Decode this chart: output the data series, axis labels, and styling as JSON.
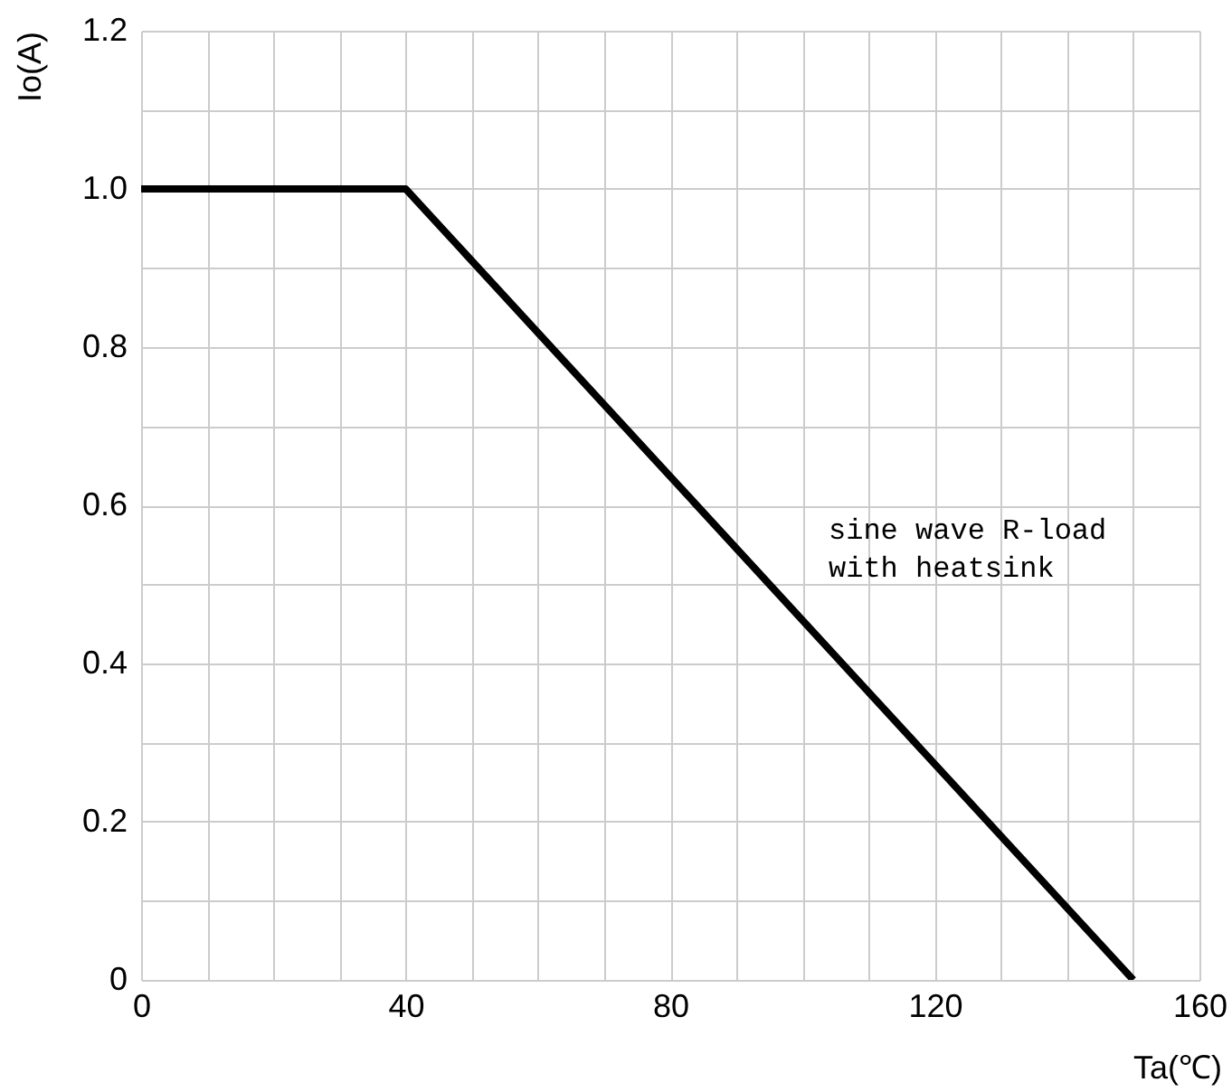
{
  "chart_data": {
    "type": "line",
    "xlabel": "Ta(℃)",
    "ylabel": "Io(A)",
    "x": [
      0,
      40,
      150
    ],
    "series": [
      {
        "color": "#000000",
        "values": [
          1.0,
          1.0,
          0
        ]
      }
    ],
    "xlim": [
      0,
      160
    ],
    "xticks": [
      0,
      {
        "value": 10,
        "label": null
      },
      {
        "value": 20,
        "label": null
      },
      {
        "value": 30,
        "label": null
      },
      40,
      {
        "value": 50,
        "label": null
      },
      {
        "value": 60,
        "label": null
      },
      {
        "value": 70,
        "label": null
      },
      80,
      {
        "value": 90,
        "label": null
      },
      {
        "value": 100,
        "label": null
      },
      {
        "value": 110,
        "label": null
      },
      120,
      {
        "value": 130,
        "label": null
      },
      {
        "value": 140,
        "label": null
      },
      {
        "value": 150,
        "label": null
      },
      160
    ],
    "ylim": [
      0,
      1.2
    ],
    "yticks": [
      0,
      {
        "value": 0.1,
        "label": null
      },
      0.2,
      {
        "value": 0.3,
        "label": null
      },
      0.4,
      {
        "value": 0.5,
        "label": null
      },
      0.6,
      {
        "value": 0.7,
        "label": null
      },
      0.8,
      {
        "value": 0.9,
        "label": null
      },
      {
        "value": 1,
        "label": "1.0"
      },
      {
        "value": 1.1,
        "label": null
      },
      1.2
    ],
    "grid": true,
    "marker": "none",
    "line_style": "solid",
    "annotations": [
      "sine wave R-load\nwith heatsink"
    ]
  }
}
